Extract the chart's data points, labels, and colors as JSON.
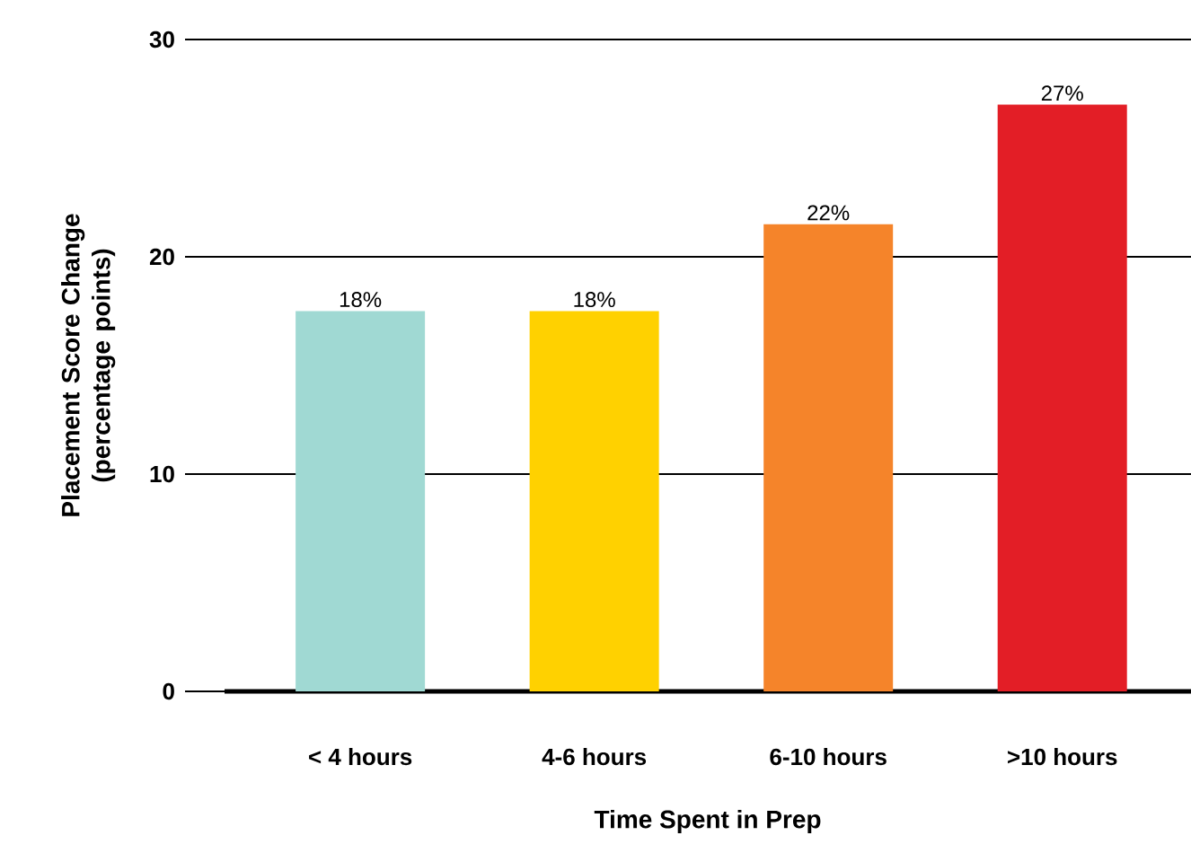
{
  "chart_data": {
    "type": "bar",
    "xlabel": "Time Spent in Prep",
    "ylabel": "Placement Score Change (percentage points)",
    "categories": [
      "< 4 hours",
      "4-6 hours",
      "6-10 hours",
      ">10 hours"
    ],
    "values": [
      17.5,
      17.5,
      21.5,
      27
    ],
    "colors": [
      "#a0d9d3",
      "#ffd100",
      "#f5842a",
      "#e31e26"
    ],
    "value_labels": [
      "18%",
      "18%",
      "22%",
      "27%"
    ],
    "ylim": [
      0,
      30
    ],
    "yticks": [
      0,
      10,
      20,
      30
    ],
    "grid": "y"
  }
}
